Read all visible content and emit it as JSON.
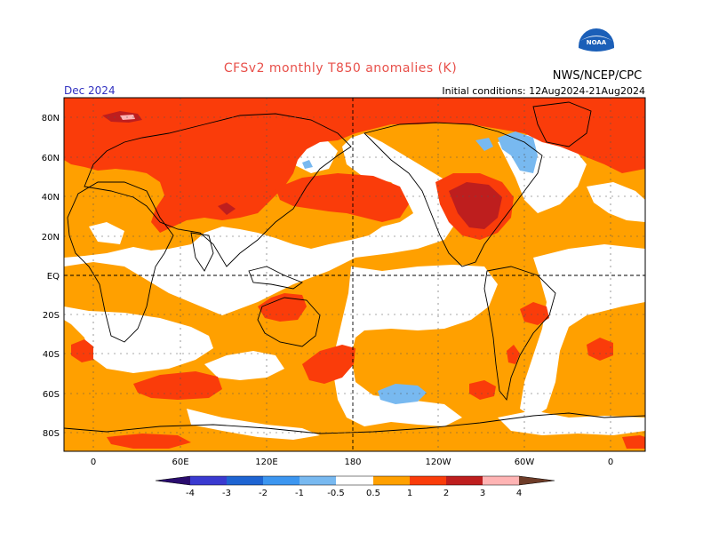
{
  "title": "CFSv2 monthly T850 anomalies (K)",
  "valid_month": "Dec 2024",
  "agency": "NWS/NCEP/CPC",
  "logo_text": "NOAA",
  "initial_conditions": "Initial conditions: 12Aug2024-21Aug2024",
  "map": {
    "lat_labels": [
      "80N",
      "60N",
      "40N",
      "20N",
      "EQ",
      "20S",
      "40S",
      "60S",
      "80S"
    ],
    "lon_labels": [
      "0",
      "60E",
      "120E",
      "180",
      "120W",
      "60W",
      "0"
    ]
  },
  "colorbar": {
    "labels": [
      "-4",
      "-3",
      "-2",
      "-1",
      "-0.5",
      "0.5",
      "1",
      "2",
      "3",
      "4"
    ],
    "colors": {
      "below_-4": "#2a0c6e",
      "-4_-3": "#3a3ad0",
      "-3_-2": "#1e64d2",
      "-2_-1": "#3c96f0",
      "-1_-0.5": "#78b9f0",
      "neutral": "#ffffff",
      "0.5_1": "#ffa000",
      "1_2": "#fa3c0a",
      "2_3": "#be1e1e",
      "3_4": "#ffb4b4",
      "above_4": "#6e3c28"
    }
  }
}
